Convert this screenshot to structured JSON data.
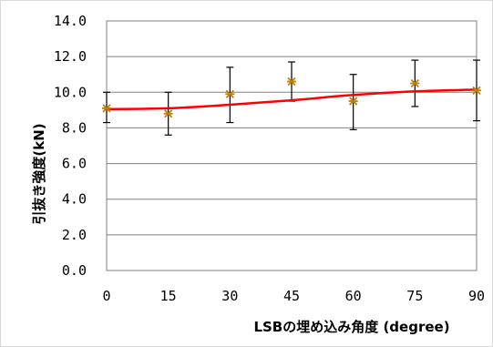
{
  "chart_data": {
    "type": "scatter",
    "title": "",
    "xlabel": "LSBの埋め込み角度 (degree)",
    "ylabel": "引抜き強度(kN)",
    "xlim": [
      0,
      90
    ],
    "ylim": [
      0,
      14
    ],
    "x_ticks": [
      0,
      15,
      30,
      45,
      60,
      75,
      90
    ],
    "y_ticks": [
      "0.0",
      "2.0",
      "4.0",
      "6.0",
      "8.0",
      "10.0",
      "12.0",
      "14.0"
    ],
    "grid": true,
    "points": [
      {
        "x": 0,
        "y": 9.1,
        "err_low": 8.3,
        "err_high": 10.0
      },
      {
        "x": 15,
        "y": 8.8,
        "err_low": 7.6,
        "err_high": 10.0
      },
      {
        "x": 30,
        "y": 9.9,
        "err_low": 8.3,
        "err_high": 11.4
      },
      {
        "x": 45,
        "y": 10.6,
        "err_low": 9.5,
        "err_high": 11.7
      },
      {
        "x": 60,
        "y": 9.5,
        "err_low": 7.9,
        "err_high": 11.0
      },
      {
        "x": 75,
        "y": 10.5,
        "err_low": 9.2,
        "err_high": 11.8
      },
      {
        "x": 90,
        "y": 10.1,
        "err_low": 8.4,
        "err_high": 11.8
      }
    ],
    "trend_line": {
      "x": [
        0,
        15,
        30,
        45,
        60,
        75,
        90
      ],
      "y": [
        9.05,
        9.1,
        9.3,
        9.55,
        9.85,
        10.05,
        10.15
      ]
    },
    "colors": {
      "trend": "#ff0000",
      "marker": "#c08000",
      "error_bar": "#000000",
      "grid": "#808080"
    }
  }
}
